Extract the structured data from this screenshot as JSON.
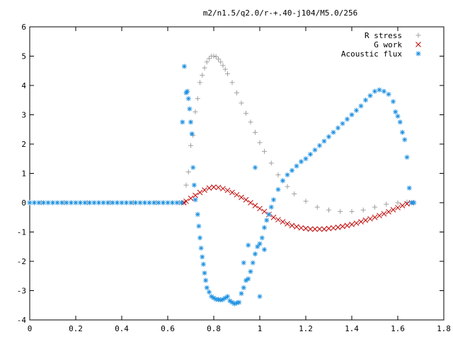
{
  "chart_data": {
    "type": "scatter",
    "title": "m2/n1.5/q2.0/r-+.40-j104/M5.0/256",
    "xlabel": "",
    "ylabel": "",
    "xlim": [
      0,
      1.8
    ],
    "ylim": [
      -4,
      6
    ],
    "x_ticks": [
      "0",
      "0.2",
      "0.4",
      "0.6",
      "0.8",
      "1",
      "1.2",
      "1.4",
      "1.6",
      "1.8"
    ],
    "y_ticks": [
      "-4",
      "-3",
      "-2",
      "-1",
      "0",
      "1",
      "2",
      "3",
      "4",
      "5",
      "6"
    ],
    "x_tick_values": [
      0,
      0.2,
      0.4,
      0.6,
      0.8,
      1.0,
      1.2,
      1.4,
      1.6,
      1.8
    ],
    "y_tick_values": [
      -4,
      -3,
      -2,
      -1,
      0,
      1,
      2,
      3,
      4,
      5,
      6
    ],
    "grid": false,
    "legend_position": "top-right",
    "series": [
      {
        "name": "R stress",
        "marker": "plus",
        "color": "#a0a0a0",
        "x": [
          0.0,
          0.05,
          0.1,
          0.15,
          0.2,
          0.25,
          0.3,
          0.35,
          0.4,
          0.45,
          0.5,
          0.55,
          0.6,
          0.65,
          0.67,
          0.68,
          0.69,
          0.7,
          0.71,
          0.72,
          0.73,
          0.74,
          0.75,
          0.76,
          0.77,
          0.78,
          0.79,
          0.8,
          0.81,
          0.82,
          0.83,
          0.84,
          0.85,
          0.86,
          0.88,
          0.9,
          0.92,
          0.94,
          0.96,
          0.98,
          1.0,
          1.02,
          1.05,
          1.08,
          1.1,
          1.12,
          1.15,
          1.2,
          1.25,
          1.3,
          1.35,
          1.4,
          1.45,
          1.5,
          1.55,
          1.6,
          1.64,
          1.67
        ],
        "y": [
          0,
          0,
          0,
          0,
          0,
          0,
          0,
          0,
          0,
          0,
          0,
          0,
          0,
          0,
          0.0,
          0.6,
          1.05,
          1.95,
          2.3,
          3.1,
          3.55,
          4.1,
          4.35,
          4.6,
          4.8,
          4.92,
          5.0,
          5.0,
          4.98,
          4.9,
          4.8,
          4.68,
          4.55,
          4.4,
          4.1,
          3.75,
          3.4,
          3.05,
          2.75,
          2.4,
          2.05,
          1.75,
          1.35,
          0.95,
          0.75,
          0.55,
          0.3,
          0.05,
          -0.15,
          -0.25,
          -0.3,
          -0.3,
          -0.25,
          -0.15,
          -0.05,
          0.0,
          0.02,
          0.0
        ]
      },
      {
        "name": "G work",
        "marker": "cross",
        "color": "#c00000",
        "x": [
          0.67,
          0.68,
          0.7,
          0.72,
          0.74,
          0.76,
          0.78,
          0.8,
          0.82,
          0.84,
          0.86,
          0.88,
          0.9,
          0.92,
          0.94,
          0.96,
          0.98,
          1.0,
          1.02,
          1.04,
          1.06,
          1.08,
          1.1,
          1.12,
          1.14,
          1.16,
          1.18,
          1.2,
          1.22,
          1.24,
          1.26,
          1.28,
          1.3,
          1.32,
          1.34,
          1.36,
          1.38,
          1.4,
          1.42,
          1.44,
          1.46,
          1.48,
          1.5,
          1.52,
          1.54,
          1.56,
          1.58,
          1.6,
          1.62,
          1.64,
          1.66
        ],
        "y": [
          0.0,
          0.05,
          0.15,
          0.25,
          0.35,
          0.43,
          0.5,
          0.53,
          0.52,
          0.48,
          0.42,
          0.35,
          0.27,
          0.18,
          0.1,
          0.0,
          -0.1,
          -0.2,
          -0.3,
          -0.4,
          -0.5,
          -0.58,
          -0.65,
          -0.72,
          -0.78,
          -0.82,
          -0.86,
          -0.88,
          -0.9,
          -0.9,
          -0.9,
          -0.9,
          -0.88,
          -0.86,
          -0.84,
          -0.81,
          -0.78,
          -0.74,
          -0.7,
          -0.65,
          -0.6,
          -0.55,
          -0.5,
          -0.44,
          -0.38,
          -0.31,
          -0.24,
          -0.17,
          -0.1,
          -0.04,
          0.0
        ]
      },
      {
        "name": "Acoustic flux",
        "marker": "star",
        "color": "#1e90e0",
        "x": [
          0.0,
          0.02,
          0.04,
          0.06,
          0.08,
          0.1,
          0.12,
          0.14,
          0.16,
          0.18,
          0.2,
          0.22,
          0.24,
          0.26,
          0.28,
          0.3,
          0.32,
          0.34,
          0.36,
          0.38,
          0.4,
          0.42,
          0.44,
          0.46,
          0.48,
          0.5,
          0.52,
          0.54,
          0.56,
          0.58,
          0.6,
          0.62,
          0.64,
          0.66,
          0.664,
          0.672,
          0.68,
          0.685,
          0.69,
          0.695,
          0.7,
          0.705,
          0.71,
          0.715,
          0.72,
          0.73,
          0.735,
          0.74,
          0.745,
          0.75,
          0.755,
          0.76,
          0.765,
          0.77,
          0.78,
          0.79,
          0.8,
          0.81,
          0.82,
          0.83,
          0.84,
          0.85,
          0.86,
          0.87,
          0.88,
          0.89,
          0.9,
          0.91,
          0.92,
          0.93,
          0.94,
          0.95,
          0.96,
          0.97,
          0.98,
          0.99,
          1.0,
          1.01,
          1.02,
          1.03,
          1.04,
          1.05,
          1.06,
          1.08,
          1.1,
          1.12,
          1.14,
          1.16,
          1.18,
          1.2,
          1.22,
          1.24,
          1.26,
          1.28,
          1.3,
          1.32,
          1.34,
          1.36,
          1.38,
          1.4,
          1.42,
          1.44,
          1.46,
          1.48,
          1.5,
          1.52,
          1.54,
          1.56,
          1.58,
          1.59,
          1.6,
          1.61,
          1.62,
          1.63,
          1.64,
          1.65,
          1.66,
          1.67,
          0.98,
          1.0,
          0.93,
          0.95,
          1.02
        ],
        "y": [
          0,
          0,
          0,
          0,
          0,
          0,
          0,
          0,
          0,
          0,
          0,
          0,
          0,
          0,
          0,
          0,
          0,
          0,
          0,
          0,
          0,
          0,
          0,
          0,
          0,
          0,
          0,
          0,
          0,
          0,
          0,
          0,
          0,
          0,
          2.75,
          4.65,
          3.75,
          3.8,
          3.55,
          3.2,
          2.75,
          2.35,
          1.2,
          0.6,
          0.1,
          -0.4,
          -0.8,
          -1.2,
          -1.55,
          -1.85,
          -2.1,
          -2.4,
          -2.65,
          -2.9,
          -3.05,
          -3.2,
          -3.25,
          -3.3,
          -3.3,
          -3.32,
          -3.3,
          -3.25,
          -3.2,
          -3.35,
          -3.4,
          -3.45,
          -3.42,
          -3.4,
          -3.1,
          -2.9,
          -2.65,
          -2.6,
          -2.35,
          -2.05,
          -1.75,
          -1.5,
          -1.4,
          -1.2,
          -0.85,
          -0.6,
          -0.4,
          -0.15,
          0.1,
          0.45,
          0.75,
          0.95,
          1.1,
          1.25,
          1.4,
          1.5,
          1.65,
          1.8,
          1.95,
          2.1,
          2.25,
          2.4,
          2.55,
          2.7,
          2.85,
          3.0,
          3.15,
          3.3,
          3.5,
          3.65,
          3.8,
          3.85,
          3.8,
          3.7,
          3.45,
          3.1,
          2.95,
          2.75,
          2.4,
          2.15,
          1.55,
          0.5,
          0.0,
          0.0,
          1.2,
          -3.2,
          -2.05,
          -1.45,
          -1.6
        ]
      }
    ]
  }
}
